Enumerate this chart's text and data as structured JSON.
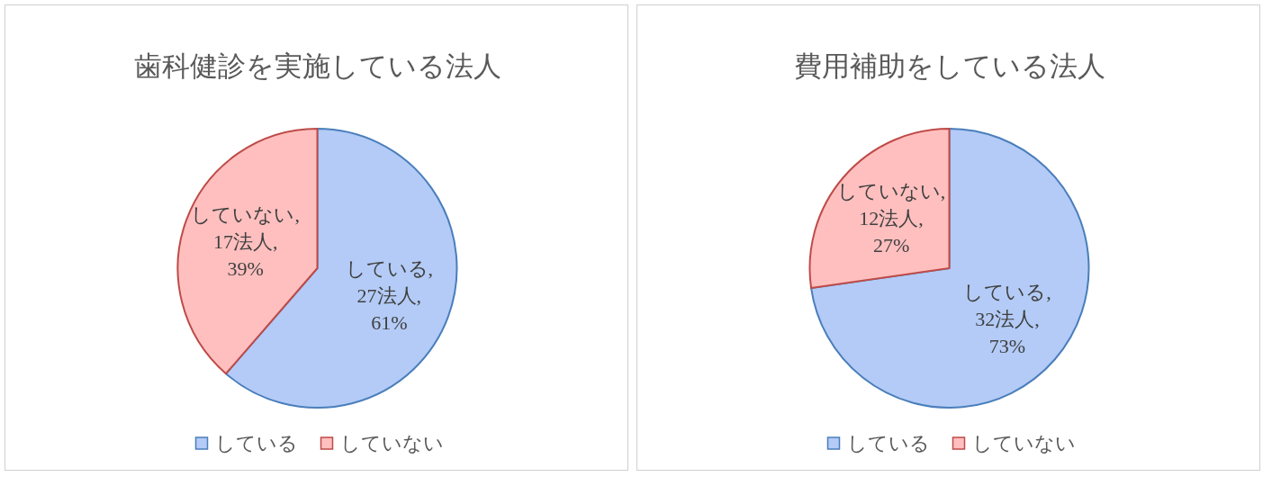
{
  "chart_data": [
    {
      "type": "pie",
      "title": "歯科健診を実施している法人",
      "categories": [
        "している",
        "していない"
      ],
      "values": [
        27,
        17
      ],
      "colors": [
        "#b3cbf6",
        "#ffbfbf"
      ],
      "value_labels": [
        "している, 27法人, 61%",
        "していない, 17法人, 39%"
      ],
      "legend": "bottom"
    },
    {
      "type": "pie",
      "title": "費用補助をしている法人",
      "categories": [
        "している",
        "していない"
      ],
      "values": [
        32,
        12
      ],
      "colors": [
        "#b3cbf6",
        "#ffbfbf"
      ],
      "value_labels": [
        "している, 32法人, 73%",
        "していない, 12法人, 27%"
      ],
      "legend": "bottom"
    }
  ]
}
